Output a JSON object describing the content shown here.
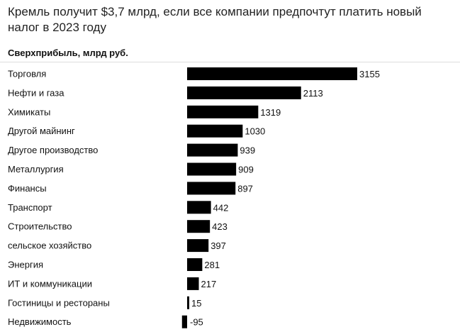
{
  "header": {
    "title": "Кремль получит $3,7 млрд, если все компании предпочтут платить новый налог в 2023 году"
  },
  "chart_data": {
    "type": "bar",
    "orientation": "horizontal",
    "title": "Кремль получит $3,7 млрд, если все компании предпочтут платить новый налог в 2023 году",
    "subtitle": "Сверхприбыль, млрд руб.",
    "xlabel": "",
    "ylabel": "",
    "grid": false,
    "legend": "none",
    "bar_color": "#000000",
    "categories": [
      "Торговля",
      "Нефти и газа",
      "Химикаты",
      "Другой майнинг",
      "Другое производство",
      "Металлургия",
      "Финансы",
      "Транспорт",
      "Строительство",
      "сельское хозяйство",
      "Энергия",
      "ИТ и коммуникации",
      "Гостиницы и рестораны",
      "Недвижимость"
    ],
    "values": [
      3155,
      2113,
      1319,
      1030,
      939,
      909,
      897,
      442,
      423,
      397,
      281,
      217,
      15,
      -95
    ],
    "xlim": [
      -95,
      3155
    ]
  }
}
